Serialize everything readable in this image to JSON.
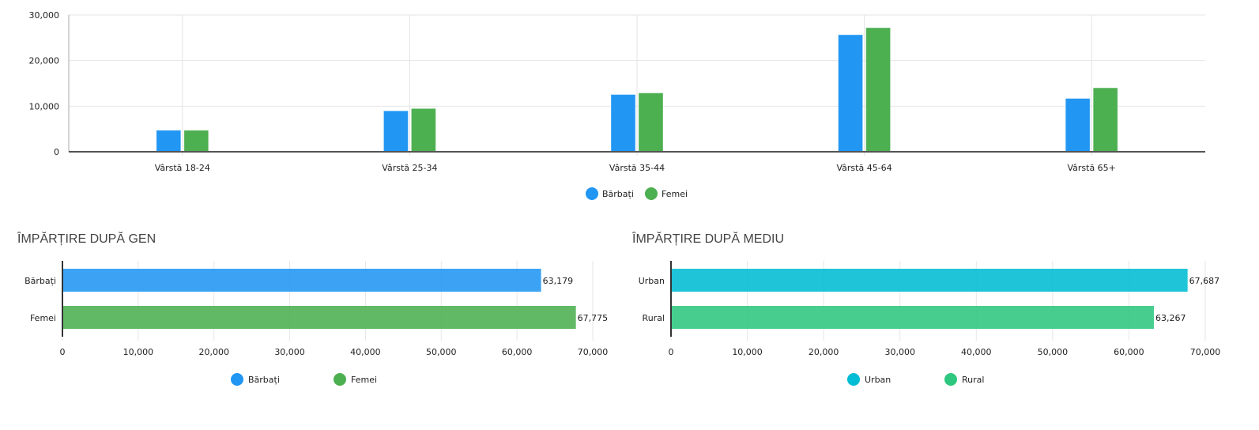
{
  "chart_data": [
    {
      "type": "bar",
      "title": "",
      "xlabel": "",
      "ylabel": "",
      "ylim": [
        0,
        30000
      ],
      "yticks": [
        "0",
        "10,000",
        "20,000",
        "30,000"
      ],
      "categories": [
        "Vârstă 18-24",
        "Vârstă 25-34",
        "Vârstă 35-44",
        "Vârstă 45-64",
        "Vârstă 65+"
      ],
      "series": [
        {
          "name": "Bărbați",
          "color": "#2196f3",
          "values": [
            4720,
            8980,
            12560,
            25680,
            11700
          ]
        },
        {
          "name": "Femei",
          "color": "#4caf50",
          "values": [
            4720,
            9490,
            12900,
            27220,
            14030
          ]
        }
      ],
      "legend": "bottom",
      "grid": true
    },
    {
      "type": "bar",
      "orientation": "horizontal",
      "title": "ÎMPĂRȚIRE DUPĂ GEN",
      "xlim": [
        0,
        70000
      ],
      "xticks": [
        "0",
        "10,000",
        "20,000",
        "30,000",
        "40,000",
        "50,000",
        "60,000",
        "70,000"
      ],
      "categories": [
        "Bărbați",
        "Femei"
      ],
      "values": [
        63179,
        67775
      ],
      "labels": [
        "63,179",
        "67,775"
      ],
      "colors": [
        "#2196f3",
        "#4caf50"
      ],
      "legend": "bottom"
    },
    {
      "type": "bar",
      "orientation": "horizontal",
      "title": "ÎMPĂRȚIRE DUPĂ MEDIU",
      "xlim": [
        0,
        70000
      ],
      "xticks": [
        "0",
        "10,000",
        "20,000",
        "30,000",
        "40,000",
        "50,000",
        "60,000",
        "70,000"
      ],
      "categories": [
        "Urban",
        "Rural"
      ],
      "values": [
        67687,
        63267
      ],
      "labels": [
        "67,687",
        "63,267"
      ],
      "colors": [
        "#00bcd4",
        "#2ec77f"
      ],
      "legend": "bottom"
    }
  ]
}
